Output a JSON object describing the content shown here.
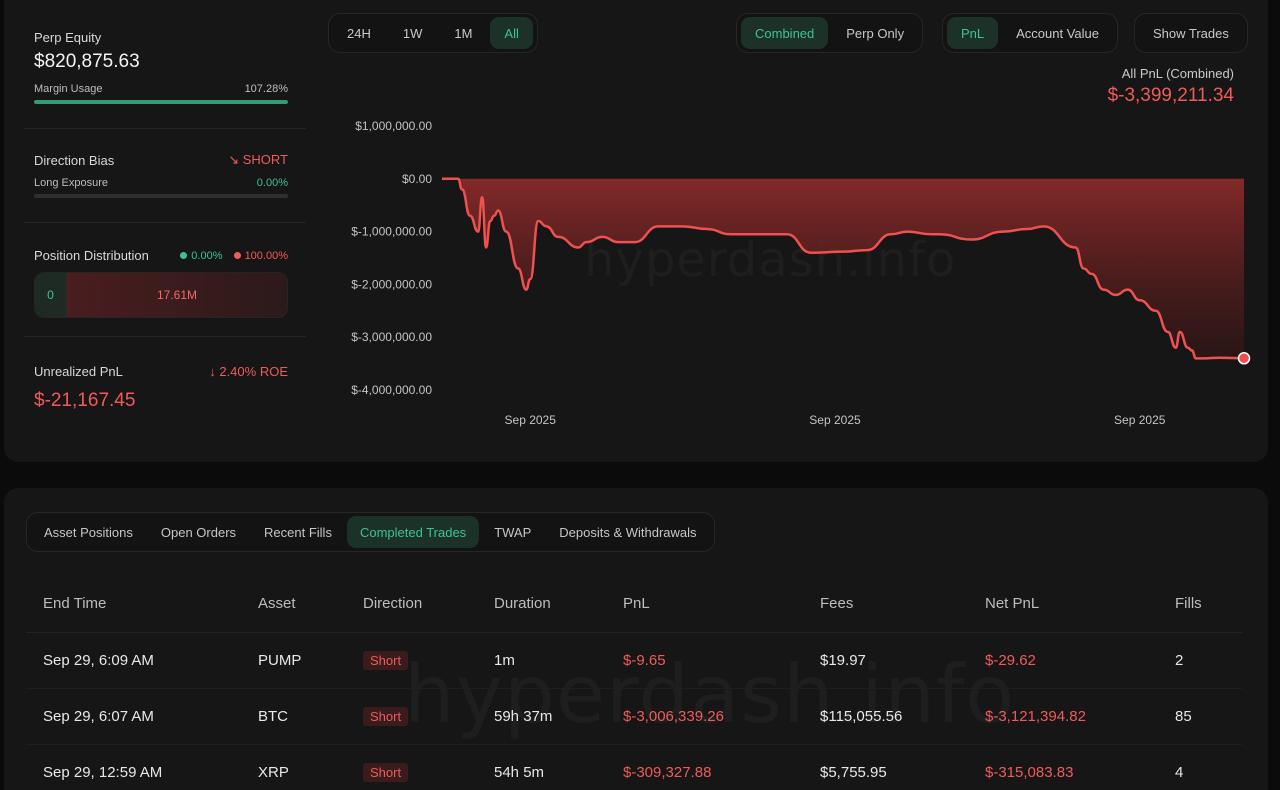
{
  "stats": {
    "perp_equity_label": "Perp Equity",
    "perp_equity_value": "$820,875.63",
    "margin_usage_label": "Margin Usage",
    "margin_usage_value": "107.28%",
    "margin_usage_fraction": 1.0,
    "direction_bias_label": "Direction Bias",
    "direction_bias_value": "SHORT",
    "long_exposure_label": "Long Exposure",
    "long_exposure_value": "0.00%",
    "long_exposure_fraction": 0.0,
    "position_distribution_label": "Position Distribution",
    "long_pct": "0.00%",
    "short_pct": "100.00%",
    "long_amount": "0",
    "short_amount": "17.61M",
    "unrealized_pnl_label": "Unrealized PnL",
    "roe_value": "2.40% ROE",
    "unrealized_pnl_value": "$-21,167.45"
  },
  "chart_controls": {
    "timeframes": [
      "24H",
      "1W",
      "1M",
      "All"
    ],
    "active_timeframe": "All",
    "modes": [
      "Combined",
      "Perp Only"
    ],
    "active_mode": "Combined",
    "metrics": [
      "PnL",
      "Account Value"
    ],
    "active_metric": "PnL",
    "show_trades_label": "Show Trades"
  },
  "pnl_header": {
    "label": "All PnL (Combined)",
    "value": "$-3,399,211.34"
  },
  "watermark": "hyperdash.info",
  "chart_data": {
    "type": "area",
    "y_tick_labels": [
      "$1,000,000.00",
      "$0.00",
      "$-1,000,000.00",
      "$-2,000,000.00",
      "$-3,000,000.00",
      "$-4,000,000.00"
    ],
    "y_ticks": [
      1000000,
      0,
      -1000000,
      -2000000,
      -3000000,
      -4000000
    ],
    "ylim": [
      -4000000,
      1000000
    ],
    "x_tick_labels": [
      "Sep 2025",
      "Sep 2025",
      "Sep 2025"
    ],
    "x_tick_positions": [
      0.11,
      0.49,
      0.87
    ],
    "xlim": [
      0,
      1
    ],
    "color": "#ef5050",
    "grid": false,
    "series": [
      {
        "x": [
          0,
          0.02,
          0.025,
          0.035,
          0.045,
          0.05,
          0.055,
          0.06,
          0.065,
          0.07,
          0.08,
          0.095,
          0.105,
          0.11,
          0.12,
          0.13,
          0.145,
          0.17,
          0.18,
          0.2,
          0.22,
          0.24,
          0.27,
          0.29,
          0.3,
          0.33,
          0.36,
          0.38,
          0.4,
          0.43,
          0.46,
          0.5,
          0.53,
          0.56,
          0.58,
          0.61,
          0.62,
          0.66,
          0.7,
          0.73,
          0.75,
          0.79,
          0.8,
          0.81,
          0.825,
          0.84,
          0.855,
          0.87,
          0.89,
          0.905,
          0.915,
          0.92,
          0.93,
          0.935,
          0.94,
          0.95,
          0.97,
          1.0
        ],
        "y": [
          0,
          0,
          -200000,
          -700000,
          -1000000,
          -350000,
          -1300000,
          -800000,
          -700000,
          -600000,
          -1000000,
          -1700000,
          -2100000,
          -1900000,
          -800000,
          -900000,
          -1100000,
          -1300000,
          -1200000,
          -1100000,
          -1200000,
          -1200000,
          -900000,
          -900000,
          -900000,
          -950000,
          -1050000,
          -1050000,
          -1050000,
          -1050000,
          -1400000,
          -1380000,
          -1350000,
          -1050000,
          -1000000,
          -1050000,
          -1050000,
          -1150000,
          -1000000,
          -950000,
          -900000,
          -1300000,
          -1700000,
          -1800000,
          -2100000,
          -2200000,
          -2100000,
          -2300000,
          -2500000,
          -2900000,
          -3200000,
          -2900000,
          -3200000,
          -3250000,
          -3400000,
          -3400000,
          -3390000,
          -3399211
        ]
      }
    ]
  },
  "tabs": [
    "Asset Positions",
    "Open Orders",
    "Recent Fills",
    "Completed Trades",
    "TWAP",
    "Deposits & Withdrawals"
  ],
  "active_tab": "Completed Trades",
  "table": {
    "headers": [
      "End Time",
      "Asset",
      "Direction",
      "Duration",
      "PnL",
      "Fees",
      "Net PnL",
      "Fills"
    ],
    "rows": [
      [
        "Sep 29, 6:09 AM",
        "PUMP",
        "Short",
        "1m",
        "$-9.65",
        "$19.97",
        "$-29.62",
        "2"
      ],
      [
        "Sep 29, 6:07 AM",
        "BTC",
        "Short",
        "59h 37m",
        "$-3,006,339.26",
        "$115,055.56",
        "$-3,121,394.82",
        "85"
      ],
      [
        "Sep 29, 12:59 AM",
        "XRP",
        "Short",
        "54h 5m",
        "$-309,327.88",
        "$5,755.95",
        "$-315,083.83",
        "4"
      ]
    ]
  }
}
